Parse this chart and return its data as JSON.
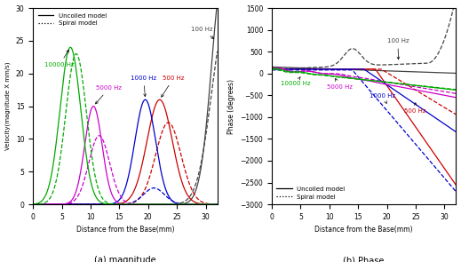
{
  "title_a": "(a) magnitude",
  "title_b": "(b) Phase",
  "xlabel": "Distance from the Base(mm)",
  "ylabel_a": "Velocity(magnitude X mm/s)",
  "ylabel_b": "Phase (degrees)",
  "xlim": [
    0,
    32
  ],
  "ylim_a": [
    0,
    30
  ],
  "ylim_b": [
    -3000,
    1500
  ],
  "yticks_a": [
    0,
    5,
    10,
    15,
    20,
    25,
    30
  ],
  "yticks_b": [
    -3000,
    -2500,
    -2000,
    -1500,
    -1000,
    -500,
    0,
    500,
    1000,
    1500
  ],
  "xticks": [
    0,
    5,
    10,
    15,
    20,
    25,
    30
  ],
  "frequencies": [
    "100 Hz",
    "500 Hz",
    "1000 Hz",
    "5000 Hz",
    "10000 Hz"
  ],
  "colors": {
    "100 Hz": "#444444",
    "500 Hz": "#cc0000",
    "1000 Hz": "#0000cc",
    "5000 Hz": "#cc00cc",
    "10000 Hz": "#00aa00"
  },
  "background_color": "#ffffff"
}
